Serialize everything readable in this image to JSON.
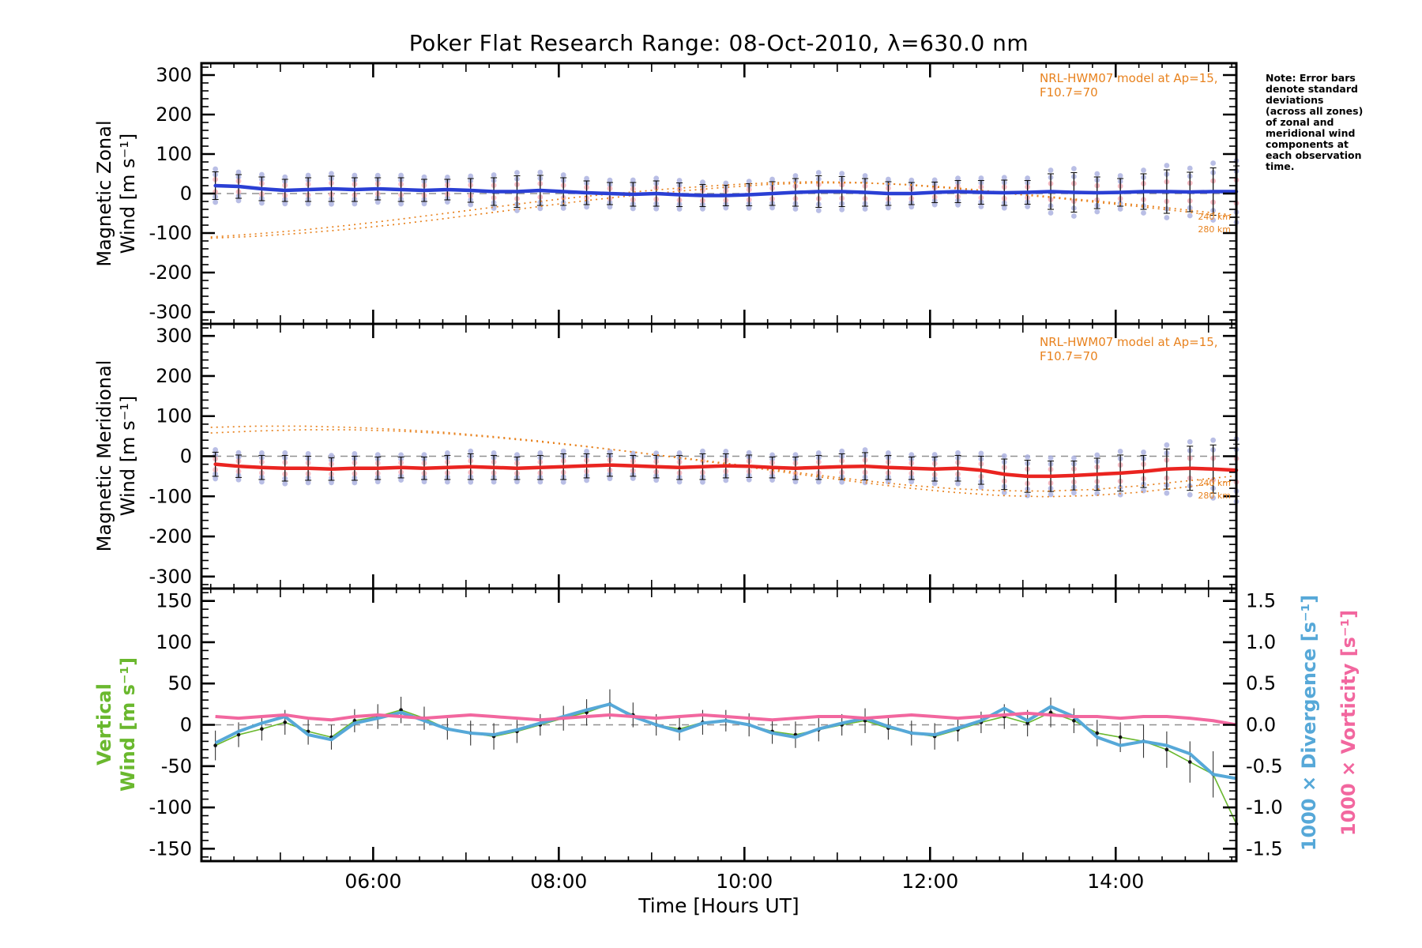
{
  "title": "Poker Flat Research Range: 08-Oct-2010, λ=630.0 nm",
  "xlabel": "Time [Hours UT]",
  "note": "Note: Error bars\ndenote standard\ndeviations\n(across all zones)\nof zonal and\nmeridional wind\ncomponents at\neach observation\ntime.",
  "model_annotation": "NRL-HWM07 model at Ap=15, F10.7=70",
  "alt_labels": {
    "alt1": "240 km",
    "alt2": "280 km"
  },
  "axis_labels": {
    "panel1_line1": "Magnetic Zonal",
    "panel1_line2": "Wind [m s⁻¹]",
    "panel2_line1": "Magnetic Meridional",
    "panel2_line2": "Wind [m s⁻¹]",
    "panel3_line1": "Vertical",
    "panel3_line2": "Wind [m s⁻¹]",
    "right1": "1000 × Divergence [s⁻¹]",
    "right2": "1000 × Vorticity [s⁻¹]"
  },
  "colors": {
    "model": "#e8821e",
    "scatter_lavender": "#a8aede",
    "scatter_pink": "#f2aab4",
    "dashed": "#909090",
    "error": "#111111"
  },
  "chart_data": {
    "type": "line",
    "xrange": [
      4.15,
      15.3
    ],
    "x_ticks": {
      "values": [
        6,
        8,
        10,
        12,
        14
      ],
      "labels": [
        "06:00",
        "08:00",
        "10:00",
        "12:00",
        "14:00"
      ]
    },
    "obs_times": [
      4.3,
      4.55,
      4.8,
      5.05,
      5.3,
      5.55,
      5.8,
      6.05,
      6.3,
      6.55,
      6.8,
      7.05,
      7.3,
      7.55,
      7.8,
      8.05,
      8.3,
      8.55,
      8.8,
      9.05,
      9.3,
      9.55,
      9.8,
      10.05,
      10.3,
      10.55,
      10.8,
      11.05,
      11.3,
      11.55,
      11.8,
      12.05,
      12.3,
      12.55,
      12.8,
      13.05,
      13.3,
      13.55,
      13.8,
      14.05,
      14.3,
      14.55,
      14.8,
      15.05,
      15.3
    ],
    "model_times": [
      4.25,
      4.75,
      5.25,
      5.75,
      6.25,
      6.75,
      7.25,
      7.75,
      8.25,
      8.75,
      9.25,
      9.75,
      10.25,
      10.75,
      11.25,
      11.75,
      12.25,
      12.75,
      13.25,
      13.75,
      14.25,
      14.75,
      15.25
    ],
    "panels": [
      {
        "name": "magnetic-zonal-wind-panel",
        "ylabel": "Magnetic Zonal Wind [m s⁻¹]",
        "color": "#2a3fd4",
        "ylim": [
          -300,
          300
        ],
        "yticks": {
          "values": [
            300,
            200,
            100,
            0,
            -100,
            -200,
            -300
          ],
          "labels": [
            "300",
            "200",
            "100",
            "0",
            "-100",
            "-200",
            "-300"
          ],
          "minor": 20
        },
        "obs": {
          "y": [
            20,
            18,
            12,
            8,
            10,
            12,
            10,
            12,
            10,
            8,
            10,
            8,
            5,
            5,
            8,
            5,
            2,
            0,
            -2,
            0,
            -3,
            -5,
            -5,
            -3,
            0,
            3,
            5,
            5,
            3,
            0,
            0,
            3,
            5,
            3,
            2,
            3,
            5,
            3,
            2,
            3,
            5,
            5,
            4,
            5,
            5
          ],
          "err": [
            35,
            30,
            30,
            28,
            30,
            32,
            30,
            28,
            30,
            28,
            26,
            30,
            35,
            40,
            38,
            35,
            30,
            28,
            30,
            32,
            30,
            28,
            26,
            28,
            30,
            35,
            40,
            38,
            35,
            30,
            28,
            26,
            28,
            30,
            32,
            30,
            45,
            50,
            40,
            35,
            45,
            55,
            50,
            60,
            65
          ]
        },
        "model": [
          {
            "label": "240 km",
            "y": [
              -110,
              -102,
              -92,
              -80,
              -66,
              -51,
              -36,
              -21,
              -8,
              3,
              13,
              21,
              27,
              30,
              28,
              22,
              13,
              2,
              -9,
              -21,
              -33,
              -46,
              -60
            ]
          },
          {
            "label": "280 km",
            "y": [
              -113,
              -108,
              -100,
              -90,
              -78,
              -64,
              -49,
              -34,
              -19,
              -6,
              5,
              15,
              23,
              27,
              27,
              23,
              15,
              4,
              -7,
              -18,
              -29,
              -41,
              -54
            ]
          }
        ]
      },
      {
        "name": "magnetic-meridional-wind-panel",
        "ylabel": "Magnetic Meridional Wind [m s⁻¹]",
        "color": "#ea2420",
        "ylim": [
          -300,
          300
        ],
        "yticks": {
          "values": [
            300,
            200,
            100,
            0,
            -100,
            -200,
            -300
          ],
          "labels": [
            "300",
            "200",
            "100",
            "0",
            "-100",
            "-200",
            "-300"
          ],
          "minor": 20
        },
        "obs": {
          "y": [
            -20,
            -25,
            -28,
            -30,
            -30,
            -32,
            -30,
            -30,
            -28,
            -30,
            -28,
            -26,
            -28,
            -30,
            -28,
            -26,
            -24,
            -22,
            -24,
            -26,
            -28,
            -26,
            -24,
            -25,
            -28,
            -30,
            -28,
            -26,
            -25,
            -28,
            -30,
            -32,
            -30,
            -35,
            -45,
            -50,
            -50,
            -48,
            -45,
            -42,
            -38,
            -32,
            -30,
            -32,
            -35
          ],
          "err": [
            30,
            28,
            30,
            32,
            30,
            28,
            30,
            28,
            26,
            28,
            30,
            32,
            30,
            28,
            30,
            32,
            30,
            28,
            26,
            28,
            30,
            32,
            30,
            28,
            26,
            28,
            30,
            32,
            34,
            30,
            28,
            30,
            32,
            35,
            38,
            40,
            38,
            36,
            40,
            45,
            40,
            50,
            55,
            60,
            65
          ]
        },
        "model": [
          {
            "label": "240 km",
            "y": [
              72,
              75,
              75,
              72,
              67,
              60,
              50,
              39,
              26,
              12,
              -3,
              -18,
              -34,
              -50,
              -65,
              -79,
              -90,
              -98,
              -101,
              -98,
              -90,
              -77,
              -62
            ]
          },
          {
            "label": "280 km",
            "y": [
              58,
              63,
              66,
              66,
              63,
              57,
              48,
              37,
              25,
              12,
              -2,
              -16,
              -31,
              -46,
              -60,
              -72,
              -81,
              -86,
              -87,
              -83,
              -74,
              -62,
              -50
            ]
          }
        ]
      },
      {
        "name": "vertical-wind-divergence-vorticity-panel",
        "ylabel": "Vertical Wind [m s⁻¹]",
        "y2label_1": "1000 × Divergence [s⁻¹]",
        "y2label_2": "1000 × Vorticity [s⁻¹]",
        "color": "#6ab82e",
        "color2": "#56a8d8",
        "color3": "#f2679f",
        "ylim": [
          -150,
          150
        ],
        "yticks": {
          "values": [
            150,
            100,
            50,
            0,
            -50,
            -100,
            -150
          ],
          "labels": [
            "150",
            "100",
            "50",
            "0",
            "-50",
            "-100",
            "-150"
          ],
          "minor": 10
        },
        "y2lim": [
          -1.5,
          1.5
        ],
        "y2ticks": {
          "values": [
            1.5,
            1.0,
            0.5,
            0.0,
            -0.5,
            -1.0,
            -1.5
          ],
          "labels": [
            "1.5",
            "1.0",
            "0.5",
            "0.0",
            "-0.5",
            "-1.0",
            "-1.5"
          ],
          "minor": 0.1
        },
        "vertical": {
          "y": [
            -25,
            -12,
            -5,
            3,
            -8,
            -15,
            5,
            10,
            18,
            8,
            -5,
            -10,
            -14,
            -8,
            0,
            8,
            15,
            25,
            12,
            0,
            -5,
            3,
            5,
            0,
            -8,
            -12,
            -6,
            0,
            5,
            -4,
            -10,
            -14,
            -6,
            3,
            10,
            2,
            15,
            5,
            -10,
            -15,
            -20,
            -30,
            -45,
            -60,
            -120
          ],
          "err": [
            18,
            15,
            14,
            15,
            16,
            15,
            14,
            15,
            16,
            14,
            13,
            15,
            16,
            14,
            13,
            15,
            16,
            18,
            15,
            13,
            14,
            15,
            13,
            14,
            15,
            16,
            14,
            13,
            15,
            14,
            15,
            16,
            14,
            13,
            15,
            16,
            18,
            15,
            16,
            18,
            20,
            22,
            25,
            28,
            35
          ]
        },
        "divergence": {
          "y": [
            -0.22,
            -0.08,
            0.02,
            0.1,
            -0.12,
            -0.18,
            0.02,
            0.08,
            0.15,
            0.05,
            -0.05,
            -0.1,
            -0.12,
            -0.06,
            0.02,
            0.1,
            0.18,
            0.25,
            0.1,
            0.0,
            -0.08,
            0.02,
            0.05,
            0.0,
            -0.1,
            -0.15,
            -0.05,
            0.02,
            0.08,
            -0.02,
            -0.1,
            -0.12,
            -0.04,
            0.05,
            0.2,
            0.05,
            0.22,
            0.1,
            -0.15,
            -0.25,
            -0.2,
            -0.25,
            -0.35,
            -0.6,
            -0.65
          ]
        },
        "vorticity": {
          "y": [
            0.1,
            0.08,
            0.1,
            0.12,
            0.08,
            0.06,
            0.1,
            0.12,
            0.1,
            0.08,
            0.1,
            0.12,
            0.1,
            0.08,
            0.06,
            0.08,
            0.1,
            0.12,
            0.1,
            0.08,
            0.1,
            0.12,
            0.1,
            0.08,
            0.06,
            0.08,
            0.1,
            0.1,
            0.08,
            0.1,
            0.12,
            0.1,
            0.08,
            0.1,
            0.12,
            0.14,
            0.12,
            0.1,
            0.1,
            0.08,
            0.1,
            0.1,
            0.08,
            0.05,
            0.0
          ]
        }
      }
    ]
  }
}
